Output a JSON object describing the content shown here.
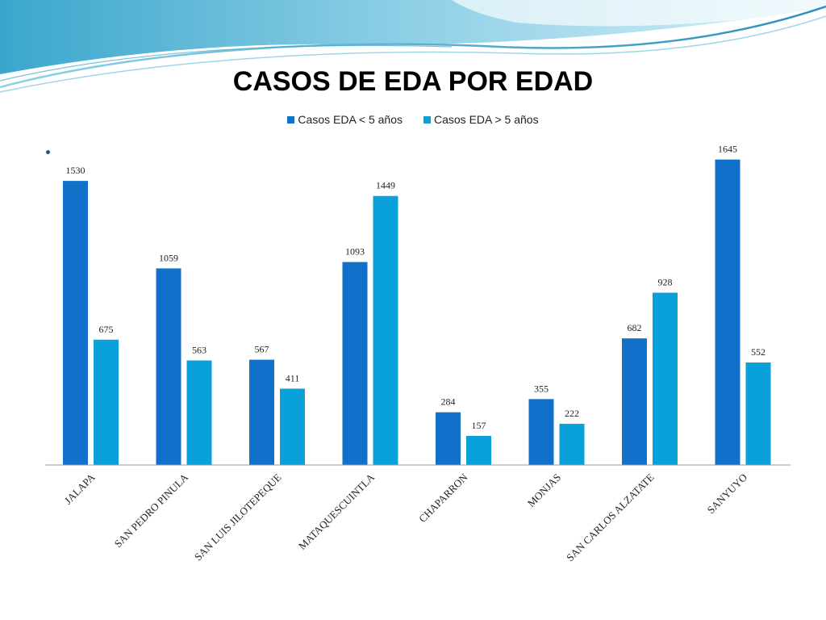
{
  "slide": {
    "title": "CASOS DE EDA POR EDAD"
  },
  "colors": {
    "series1": "#1170c9",
    "series2": "#0aa0da",
    "wave_dark": "#2b9bc4",
    "wave_light": "#bfe6f2"
  },
  "chart_data": {
    "type": "bar",
    "title": "CASOS DE EDA POR EDAD",
    "categories": [
      "JALAPA",
      "SAN PEDRO PINULA",
      "SAN LUIS JILOTEPEQUE",
      "MATAQUESCUINTLA",
      "CHAPARRON",
      "MONJAS",
      "SAN CARLOS ALZATATE",
      "SANYUYO"
    ],
    "series": [
      {
        "name": "Casos EDA < 5 años",
        "values": [
          1530,
          1059,
          567,
          1093,
          284,
          355,
          682,
          1645
        ]
      },
      {
        "name": "Casos EDA > 5 años",
        "values": [
          675,
          563,
          411,
          1449,
          157,
          222,
          928,
          552
        ]
      }
    ],
    "ylim": [
      0,
      1700
    ],
    "grid": false,
    "legend_position": "top-center",
    "data_labels": true
  }
}
